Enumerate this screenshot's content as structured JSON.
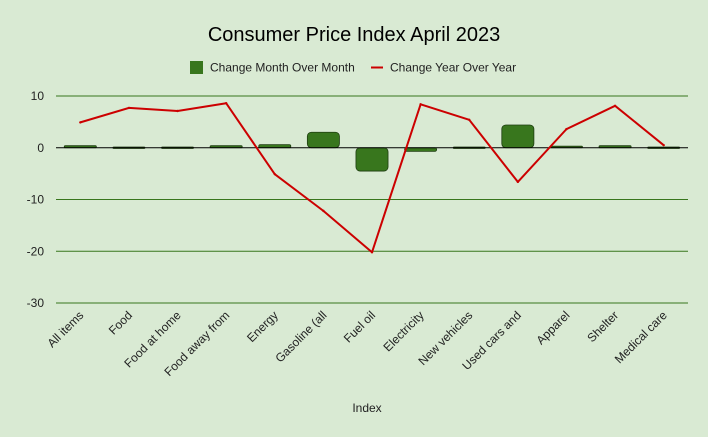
{
  "chart_data": {
    "type": "bar",
    "title": "Consumer Price Index April 2023",
    "xlabel": "Index",
    "ylabel": "",
    "ylim": [
      -30,
      10
    ],
    "yticks": [
      10,
      0,
      -10,
      -20,
      -30
    ],
    "legend_position": "top-center",
    "grid": true,
    "categories": [
      "All items",
      "Food",
      "Food at home",
      "Food away from",
      "Energy",
      "Gasoline (all",
      "Fuel oil",
      "Electricity",
      "New vehicles",
      "Used cars and",
      "Apparel",
      "Shelter",
      "Medical care"
    ],
    "series": [
      {
        "name": "Change Month Over Month",
        "type": "bar",
        "color": "#38761d",
        "values": [
          0.4,
          0.0,
          -0.2,
          0.4,
          0.6,
          3.0,
          -4.5,
          -0.7,
          -0.2,
          4.4,
          0.3,
          0.4,
          -0.1
        ]
      },
      {
        "name": "Change Year Over Year",
        "type": "line",
        "color": "#cc0000",
        "values": [
          4.9,
          7.7,
          7.1,
          8.6,
          -5.1,
          -12.2,
          -20.2,
          8.4,
          5.4,
          -6.6,
          3.6,
          8.1,
          0.5
        ]
      }
    ]
  }
}
